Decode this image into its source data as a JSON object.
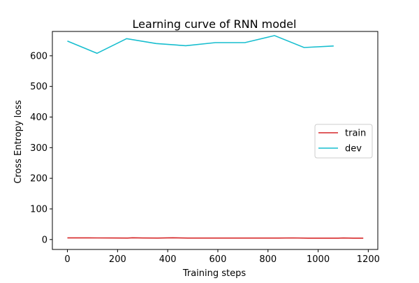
{
  "chart_data": {
    "type": "line",
    "title": "Learning curve of RNN model",
    "xlabel": "Training steps",
    "ylabel": "Cross Entropy loss",
    "xlim": [
      -60,
      1238
    ],
    "ylim": [
      -32.4,
      679.5
    ],
    "xticks": [
      0,
      200,
      400,
      600,
      800,
      1000,
      1200
    ],
    "yticks": [
      0,
      100,
      200,
      300,
      400,
      500,
      600
    ],
    "grid": false,
    "legend_position": "center-right",
    "series": [
      {
        "name": "train",
        "color": "#d62728",
        "x": [
          0,
          60,
          120,
          180,
          240,
          260,
          300,
          360,
          420,
          480,
          540,
          600,
          660,
          720,
          780,
          840,
          900,
          960,
          1020,
          1080,
          1100,
          1140,
          1180
        ],
        "y": [
          5.5,
          5.4,
          5.2,
          5.0,
          4.9,
          5.8,
          5.0,
          4.9,
          5.6,
          4.8,
          4.8,
          4.8,
          4.9,
          4.7,
          4.9,
          4.7,
          5.2,
          4.6,
          4.6,
          4.6,
          5.0,
          4.6,
          4.6
        ]
      },
      {
        "name": "dev",
        "color": "#17becf",
        "x": [
          0,
          118,
          236,
          354,
          472,
          590,
          708,
          826,
          944,
          1062
        ],
        "y": [
          648,
          608,
          656,
          640,
          633,
          643,
          643,
          666,
          627,
          632
        ]
      }
    ]
  }
}
